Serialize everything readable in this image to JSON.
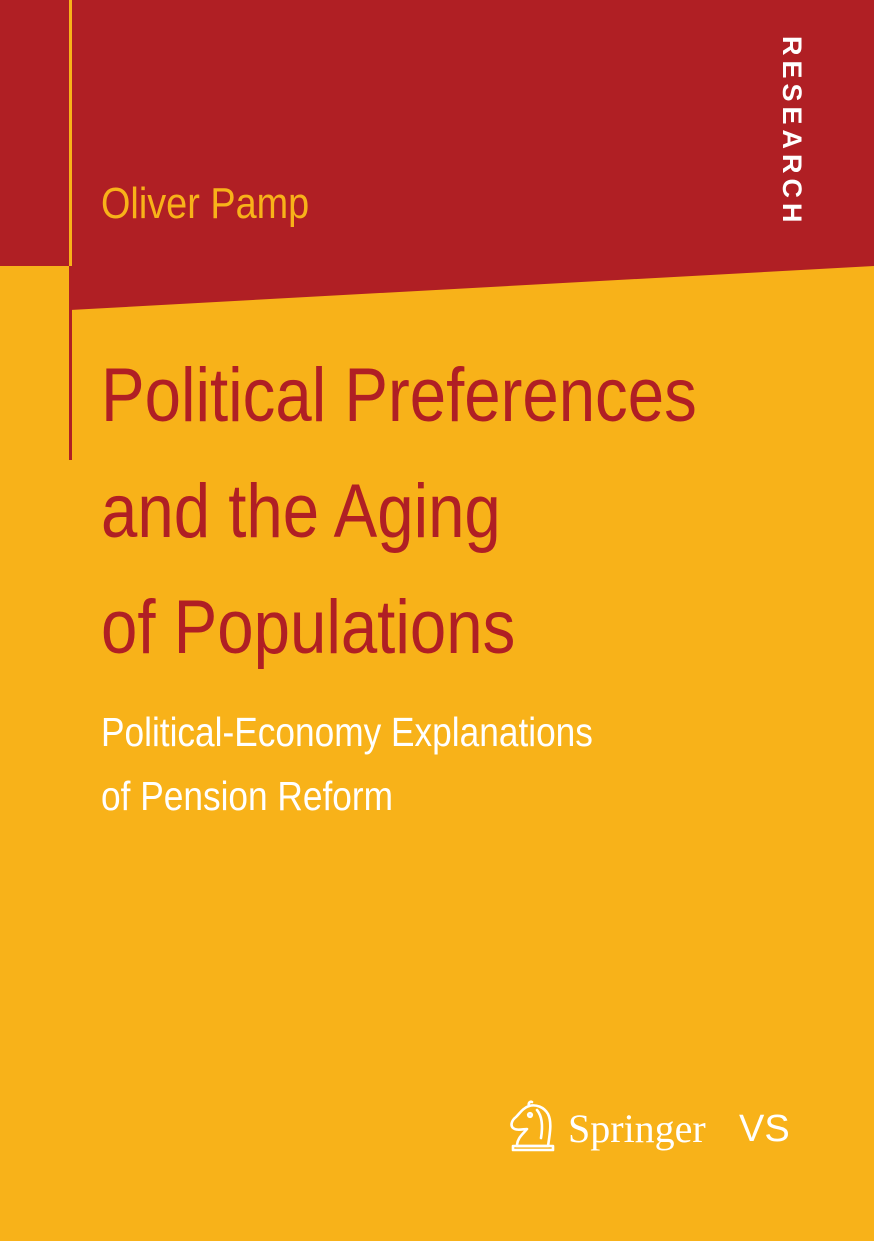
{
  "cover": {
    "series_label": "RESEARCH",
    "author": "Oliver Pamp",
    "title_lines": [
      "Political Preferences",
      "and the Aging",
      "of Populations"
    ],
    "subtitle_lines": [
      "Political-Economy Explanations",
      "of Pension Reform"
    ],
    "publisher": {
      "name": "Springer",
      "imprint": "VS",
      "logo_icon": "knight-chess-piece-icon"
    }
  },
  "colors": {
    "background": "#f8b219",
    "band": "#b01f24",
    "title": "#b01f24",
    "subtitle": "#ffffff",
    "author": "#f8b219"
  }
}
